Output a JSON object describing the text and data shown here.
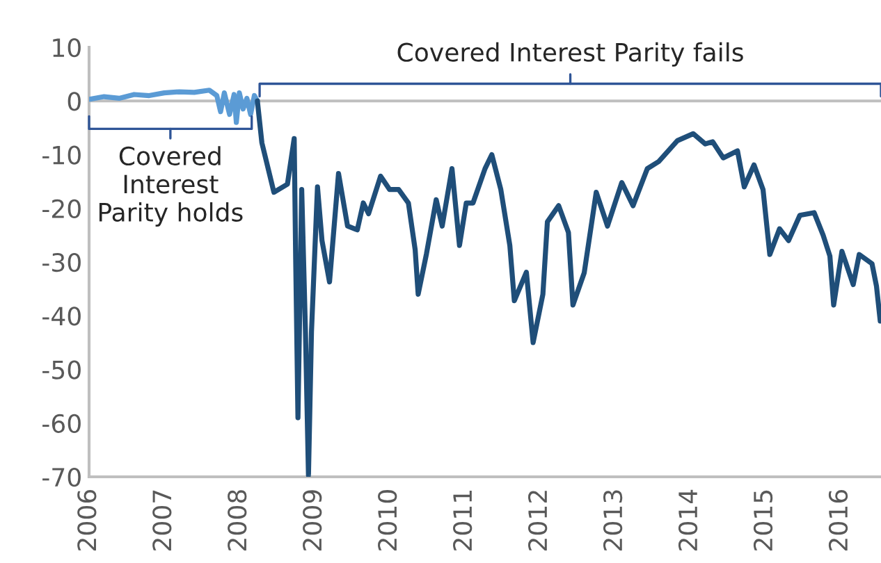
{
  "chart_data": {
    "type": "line",
    "annotations": [
      "Covered Interest Parity fails",
      "Covered\nInterest\nParity holds"
    ],
    "series": [
      {
        "color": "#5b9bd5",
        "x": [
          2006.0,
          2006.2,
          2006.4,
          2006.6,
          2006.8,
          2007.0,
          2007.2,
          2007.4,
          2007.6,
          2007.7,
          2007.75,
          2007.8,
          2007.87,
          2007.93,
          2007.96,
          2008.0,
          2008.05,
          2008.1,
          2008.15,
          2008.2,
          2008.24
        ],
        "values": [
          0.3,
          0.8,
          0.5,
          1.2,
          1.0,
          1.5,
          1.7,
          1.6,
          2.0,
          1.0,
          -2,
          1.5,
          -2.5,
          1.2,
          -4,
          1.5,
          -1.5,
          0.5,
          -2.5,
          1.0,
          0
        ]
      },
      {
        "color": "#1f4e79",
        "x": [
          2008.24,
          2008.3,
          2008.46,
          2008.64,
          2008.73,
          2008.75,
          2008.78,
          2008.83,
          2008.88,
          2008.92,
          2008.96,
          2009.04,
          2009.1,
          2009.2,
          2009.32,
          2009.44,
          2009.57,
          2009.65,
          2009.72,
          2009.88,
          2010.0,
          2010.12,
          2010.25,
          2010.34,
          2010.38,
          2010.49,
          2010.62,
          2010.7,
          2010.83,
          2010.93,
          2011.02,
          2011.11,
          2011.27,
          2011.36,
          2011.48,
          2011.6,
          2011.66,
          2011.82,
          2011.91,
          2012.04,
          2012.1,
          2012.25,
          2012.38,
          2012.44,
          2012.59,
          2012.75,
          2012.9,
          2013.09,
          2013.24,
          2013.43,
          2013.58,
          2013.83,
          2014.04,
          2014.2,
          2014.3,
          2014.44,
          2014.63,
          2014.72,
          2014.85,
          2014.97,
          2015.06,
          2015.19,
          2015.31,
          2015.46,
          2015.65,
          2015.77,
          2015.86,
          2015.91,
          2016.02,
          2016.17,
          2016.25,
          2016.42,
          2016.48,
          2016.53
        ],
        "values": [
          0,
          -7.8,
          -17,
          -15.5,
          -7,
          -29.5,
          -59,
          -16.5,
          -43,
          -69.7,
          -43,
          -16,
          -26,
          -33.7,
          -13.5,
          -23.3,
          -24,
          -19,
          -21,
          -14,
          -16.5,
          -16.5,
          -19,
          -27.7,
          -36,
          -28.5,
          -18.4,
          -23.3,
          -12.6,
          -26.9,
          -19,
          -19,
          -12.6,
          -10,
          -16.5,
          -26.9,
          -37.2,
          -31.9,
          -45,
          -36,
          -22.5,
          -19.5,
          -24.5,
          -38,
          -32,
          -17,
          -23.3,
          -15.2,
          -19.5,
          -12.6,
          -11.3,
          -7.4,
          -6.1,
          -8,
          -7.6,
          -10.6,
          -9.3,
          -16,
          -11.9,
          -16.5,
          -28.6,
          -23.8,
          -26,
          -21.3,
          -20.8,
          -25,
          -28.9,
          -38,
          -28,
          -34.2,
          -28.6,
          -30.3,
          -34.5,
          -41
        ]
      }
    ],
    "xlim": [
      2006,
      2016.54
    ],
    "xticks": [
      2006,
      2007,
      2008,
      2009,
      2010,
      2011,
      2012,
      2013,
      2014,
      2015,
      2016
    ],
    "ylim": [
      -70,
      10
    ],
    "yticks": [
      -70,
      -60,
      -50,
      -40,
      -30,
      -20,
      -10,
      0,
      10
    ],
    "ref_lines": [
      {
        "axis": "y",
        "value": 0,
        "color": "#bfbfbf"
      }
    ],
    "grid": false,
    "legend": false
  }
}
